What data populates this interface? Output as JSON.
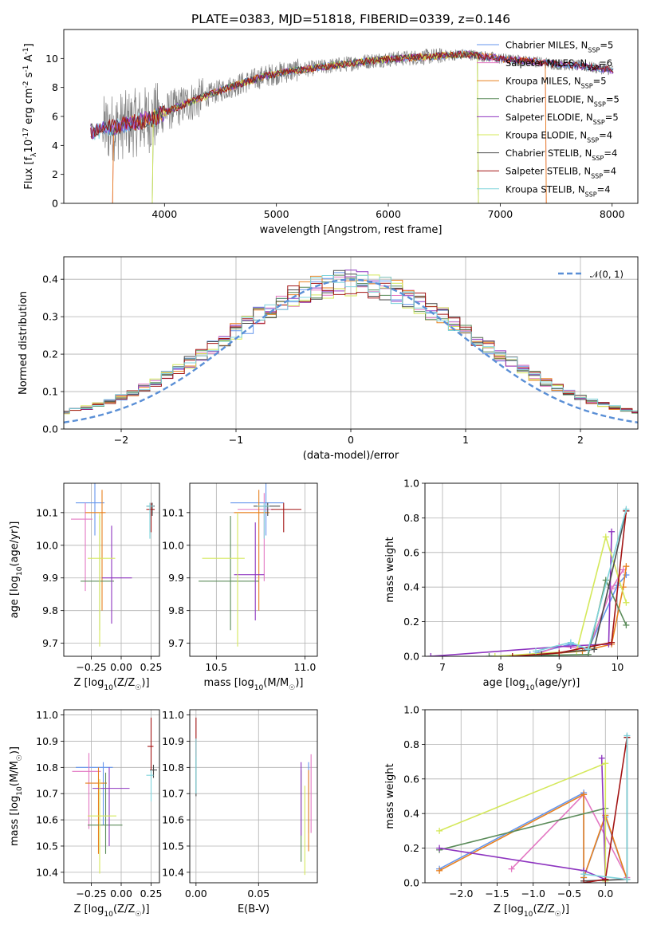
{
  "figure_title": "PLATE=0383, MJD=51818, FIBERID=0339, z=0.146",
  "legend_labels": [
    "Chabrier MILES, N$_{SSP}$=5",
    "Salpeter MILES, N$_{SSP}$=6",
    "Kroupa MILES, N$_{SSP}$=5",
    "Chabrier ELODIE, N$_{SSP}$=5",
    "Salpeter ELODIE, N$_{SSP}$=5",
    "Kroupa ELODIE, N$_{SSP}$=4",
    "Chabrier STELIB, N$_{SSP}$=4",
    "Salpeter STELIB, N$_{SSP}$=4",
    "Kroupa STELIB, N$_{SSP}$=4"
  ],
  "colors": [
    "#6495ed",
    "#e377c2",
    "#e8801e",
    "#5b8c5a",
    "#8e35c0",
    "#d4e85a",
    "#4a4a4a",
    "#a31515",
    "#7fd4dc"
  ],
  "chart_data": [
    {
      "id": "spectrum",
      "type": "line",
      "title": "PLATE=0383, MJD=51818, FIBERID=0339, z=0.146",
      "xlabel": "wavelength [Angstrom, rest frame]",
      "ylabel": "Flux [f$_\\lambda$10$^{-17}$ erg cm$^{-2}$ s$^{-1}$ A$^{-1}$]",
      "xlim": [
        3100,
        8230
      ],
      "ylim": [
        0,
        12
      ],
      "xticks": [
        4000,
        5000,
        6000,
        7000,
        8000
      ],
      "yticks": [
        0,
        2,
        4,
        6,
        8,
        10
      ],
      "grid": false,
      "legend": "upper right",
      "data_wavelength_range": [
        3340,
        8010
      ],
      "model_cutoffs": [
        {
          "series": "Kroupa MILES",
          "start": 3540,
          "end": 7410
        },
        {
          "series": "Salpeter MILES",
          "start": 3540,
          "end": 7410
        },
        {
          "series": "Kroupa ELODIE",
          "start": 3900,
          "end": 6800
        },
        {
          "series": "Chabrier ELODIE",
          "start": 3900,
          "end": 6800
        }
      ],
      "continuum": [
        [
          3340,
          4.9
        ],
        [
          3500,
          5.2
        ],
        [
          3700,
          5.5
        ],
        [
          3900,
          5.9
        ],
        [
          4100,
          6.6
        ],
        [
          4300,
          7.2
        ],
        [
          4500,
          7.8
        ],
        [
          4700,
          8.3
        ],
        [
          4900,
          8.8
        ],
        [
          5100,
          9.1
        ],
        [
          5300,
          9.3
        ],
        [
          5500,
          9.5
        ],
        [
          5700,
          9.7
        ],
        [
          5900,
          9.9
        ],
        [
          6100,
          10.0
        ],
        [
          6300,
          10.1
        ],
        [
          6500,
          10.2
        ],
        [
          6700,
          10.3
        ],
        [
          6900,
          10.1
        ],
        [
          7100,
          9.9
        ],
        [
          7300,
          9.8
        ],
        [
          7500,
          9.6
        ],
        [
          7700,
          9.5
        ],
        [
          8010,
          9.2
        ]
      ],
      "series": [
        {
          "name": "Chabrier MILES, N$_{SSP}$=5"
        },
        {
          "name": "Salpeter MILES, N$_{SSP}$=6"
        },
        {
          "name": "Kroupa MILES, N$_{SSP}$=5"
        },
        {
          "name": "Chabrier ELODIE, N$_{SSP}$=5"
        },
        {
          "name": "Salpeter ELODIE, N$_{SSP}$=5"
        },
        {
          "name": "Kroupa ELODIE, N$_{SSP}$=4"
        },
        {
          "name": "Chabrier STELIB, N$_{SSP}$=4"
        },
        {
          "name": "Salpeter STELIB, N$_{SSP}$=4"
        },
        {
          "name": "Kroupa STELIB, N$_{SSP}$=4"
        }
      ]
    },
    {
      "id": "residuals",
      "type": "line",
      "xlabel": "(data-model)/error",
      "ylabel": "Normed distribution",
      "xlim": [
        -2.5,
        2.5
      ],
      "ylim": [
        0,
        0.46
      ],
      "xticks": [
        -2,
        -1,
        0,
        1,
        2
      ],
      "yticks": [
        0.0,
        0.1,
        0.2,
        0.3,
        0.4
      ],
      "grid": true,
      "legend": "upper right",
      "legend_label": "$\\mathcal{N}(0,1)$",
      "bin_width": 0.1
    },
    {
      "id": "age_vs_Z",
      "type": "scatter",
      "xlabel": "Z [log$_{10}$(Z/Z$_\\odot$)]",
      "ylabel": "age  [log$_{10}$(age/yr)]",
      "xlim": [
        -0.48,
        0.32
      ],
      "ylim": [
        9.66,
        10.19
      ],
      "xticks": [
        -0.25,
        0.0,
        0.25
      ],
      "yticks": [
        9.7,
        9.8,
        9.9,
        10.0,
        10.1
      ],
      "grid": true,
      "points": [
        {
          "x": -0.22,
          "y": 10.13,
          "xerr": [
            0.16,
            0.08
          ],
          "yerr": [
            0.1,
            0.06
          ]
        },
        {
          "x": -0.3,
          "y": 10.08,
          "xerr": [
            0.12,
            0.06
          ],
          "yerr": [
            0.22,
            0.05
          ]
        },
        {
          "x": -0.16,
          "y": 10.1,
          "xerr": [
            0.14,
            0.03
          ],
          "yerr": [
            0.3,
            0.07
          ]
        },
        {
          "x": -0.18,
          "y": 9.89,
          "xerr": [
            0.16,
            0.12
          ],
          "yerr": [
            0.15,
            0.2
          ]
        },
        {
          "x": -0.08,
          "y": 9.9,
          "xerr": [
            0.08,
            0.17
          ],
          "yerr": [
            0.14,
            0.16
          ]
        },
        {
          "x": -0.18,
          "y": 9.96,
          "xerr": [
            0.1,
            0.13
          ],
          "yerr": [
            0.27,
            0.14
          ]
        },
        {
          "x": 0.26,
          "y": 10.12,
          "xerr": [
            0.05,
            0.02
          ],
          "yerr": [
            0.03,
            0.01
          ]
        },
        {
          "x": 0.25,
          "y": 10.11,
          "xerr": [
            0.04,
            0.03
          ],
          "yerr": [
            0.07,
            0.02
          ]
        },
        {
          "x": 0.24,
          "y": 10.12,
          "xerr": [
            0.03,
            0.03
          ],
          "yerr": [
            0.1,
            0.01
          ]
        }
      ]
    },
    {
      "id": "age_vs_mass",
      "type": "scatter",
      "xlabel": "mass [log$_{10}$(M/M$_\\odot$)]",
      "ylabel": "",
      "xlim": [
        10.35,
        11.07
      ],
      "ylim": [
        9.66,
        10.19
      ],
      "xticks": [
        10.5,
        11.0
      ],
      "yticks": [
        9.7,
        9.8,
        9.9,
        10.0,
        10.1
      ],
      "grid": true,
      "points": [
        {
          "x": 10.78,
          "y": 10.13,
          "xerr": [
            0.2,
            0.1
          ],
          "yerr": [
            0.1,
            0.06
          ]
        },
        {
          "x": 10.77,
          "y": 10.11,
          "xerr": [
            0.15,
            0.05
          ],
          "yerr": [
            0.22,
            0.05
          ]
        },
        {
          "x": 10.74,
          "y": 10.1,
          "xerr": [
            0.14,
            0.06
          ],
          "yerr": [
            0.3,
            0.07
          ]
        },
        {
          "x": 10.58,
          "y": 9.89,
          "xerr": [
            0.18,
            0.16
          ],
          "yerr": [
            0.15,
            0.2
          ]
        },
        {
          "x": 10.72,
          "y": 9.91,
          "xerr": [
            0.12,
            0.05
          ],
          "yerr": [
            0.14,
            0.16
          ]
        },
        {
          "x": 10.62,
          "y": 9.96,
          "xerr": [
            0.2,
            0.04
          ],
          "yerr": [
            0.27,
            0.14
          ]
        },
        {
          "x": 10.79,
          "y": 10.12,
          "xerr": [
            0.08,
            0.07
          ],
          "yerr": [
            0.03,
            0.01
          ]
        },
        {
          "x": 10.88,
          "y": 10.11,
          "xerr": [
            0.07,
            0.1
          ],
          "yerr": [
            0.07,
            0.02
          ]
        },
        {
          "x": 10.77,
          "y": 10.12,
          "xerr": [
            0.04,
            0.03
          ],
          "yerr": [
            0.1,
            0.01
          ]
        }
      ]
    },
    {
      "id": "weight_vs_age",
      "type": "line",
      "xlabel": "age  [log$_{10}$(age/yr)]",
      "ylabel": "mass weight",
      "xlim": [
        6.7,
        10.35
      ],
      "ylim": [
        0,
        1.0
      ],
      "xticks": [
        7,
        8,
        9,
        10
      ],
      "yticks": [
        0.0,
        0.2,
        0.4,
        0.6,
        0.8,
        1.0
      ],
      "grid": true,
      "series": [
        {
          "x": [
            8.5,
            9.2,
            9.5,
            10.0,
            10.15
          ],
          "y": [
            0.01,
            0.07,
            0.04,
            0.41,
            0.47
          ]
        },
        {
          "x": [
            8.6,
            9.0,
            9.5,
            9.9,
            10.1
          ],
          "y": [
            0.01,
            0.06,
            0.04,
            0.39,
            0.5
          ]
        },
        {
          "x": [
            8.7,
            9.4,
            9.9,
            10.1,
            10.15
          ],
          "y": [
            0.01,
            0.03,
            0.07,
            0.4,
            0.52
          ]
        },
        {
          "x": [
            7.8,
            9.5,
            9.8,
            10.15
          ],
          "y": [
            0.0,
            0.01,
            0.44,
            0.18
          ]
        },
        {
          "x": [
            6.8,
            9.2,
            9.85,
            9.9
          ],
          "y": [
            0.0,
            0.06,
            0.07,
            0.72
          ]
        },
        {
          "x": [
            7.9,
            9.3,
            9.8,
            10.15
          ],
          "y": [
            0.0,
            0.03,
            0.69,
            0.31
          ]
        },
        {
          "x": [
            8.7,
            9.6,
            10.15
          ],
          "y": [
            0.01,
            0.04,
            0.84
          ]
        },
        {
          "x": [
            8.2,
            9.0,
            9.9,
            10.15
          ],
          "y": [
            0.0,
            0.02,
            0.08,
            0.84
          ]
        },
        {
          "x": [
            8.6,
            9.2,
            9.5,
            10.15
          ],
          "y": [
            0.03,
            0.08,
            0.04,
            0.85
          ]
        }
      ]
    },
    {
      "id": "mass_vs_Z",
      "type": "scatter",
      "xlabel": "Z [log$_{10}$(Z/Z$_\\odot$)]",
      "ylabel": "mass [log$_{10}$(M/M$_\\odot$)]",
      "xlim": [
        -0.48,
        0.32
      ],
      "ylim": [
        10.36,
        11.02
      ],
      "xticks": [
        -0.25,
        0.0,
        0.25
      ],
      "yticks": [
        10.4,
        10.5,
        10.6,
        10.7,
        10.8,
        10.9,
        11.0
      ],
      "grid": true,
      "points": [
        {
          "x": -0.15,
          "y": 10.8,
          "xerr": [
            0.23,
            0.08
          ],
          "yerr": [
            0.22,
            0.02
          ]
        },
        {
          "x": -0.27,
          "y": 10.785,
          "xerr": [
            0.14,
            0.1
          ],
          "yerr": [
            0.22,
            0.07
          ]
        },
        {
          "x": -0.19,
          "y": 10.74,
          "xerr": [
            0.11,
            0.07
          ],
          "yerr": [
            0.27,
            0.06
          ]
        },
        {
          "x": -0.13,
          "y": 10.58,
          "xerr": [
            0.15,
            0.14
          ],
          "yerr": [
            0.11,
            0.2
          ]
        },
        {
          "x": -0.1,
          "y": 10.72,
          "xerr": [
            0.14,
            0.17
          ],
          "yerr": [
            0.22,
            0.08
          ]
        },
        {
          "x": -0.18,
          "y": 10.615,
          "xerr": [
            0.1,
            0.14
          ],
          "yerr": [
            0.22,
            0.14
          ]
        },
        {
          "x": 0.27,
          "y": 10.79,
          "xerr": [
            0.03,
            0.03
          ],
          "yerr": [
            0.03,
            0.02
          ]
        },
        {
          "x": 0.25,
          "y": 10.88,
          "xerr": [
            0.03,
            0.02
          ],
          "yerr": [
            0.1,
            0.11
          ]
        },
        {
          "x": 0.25,
          "y": 10.77,
          "xerr": [
            0.04,
            0.02
          ],
          "yerr": [
            0.1,
            0.02
          ]
        }
      ]
    },
    {
      "id": "mass_vs_EBV",
      "type": "scatter",
      "xlabel": "E(B-V)",
      "ylabel": "",
      "xlim": [
        -0.005,
        0.097
      ],
      "ylim": [
        10.36,
        11.02
      ],
      "xticks": [
        0.0,
        0.05
      ],
      "yticks": [
        10.4,
        10.5,
        10.6,
        10.7,
        10.8,
        10.9,
        11.0
      ],
      "grid": true,
      "points": [
        {
          "x": 0.09,
          "y": 10.8,
          "xerr": [
            0,
            0
          ],
          "yerr": [
            0.25,
            0.02
          ]
        },
        {
          "x": 0.092,
          "y": 10.79,
          "xerr": [
            0,
            0
          ],
          "yerr": [
            0.24,
            0.06
          ]
        },
        {
          "x": 0.09,
          "y": 10.74,
          "xerr": [
            0,
            0
          ],
          "yerr": [
            0.26,
            0.05
          ]
        },
        {
          "x": 0.084,
          "y": 10.58,
          "xerr": [
            0,
            0
          ],
          "yerr": [
            0.14,
            0.21
          ]
        },
        {
          "x": 0.084,
          "y": 10.72,
          "xerr": [
            0,
            0
          ],
          "yerr": [
            0.18,
            0.1
          ]
        },
        {
          "x": 0.087,
          "y": 10.61,
          "xerr": [
            0,
            0
          ],
          "yerr": [
            0.22,
            0.12
          ]
        },
        {
          "x": 0.0,
          "y": 10.79,
          "xerr": [
            0,
            0
          ],
          "yerr": [
            0.1,
            0.05
          ]
        },
        {
          "x": 0.0,
          "y": 10.9,
          "xerr": [
            0,
            0
          ],
          "yerr": [
            0.06,
            0.09
          ]
        },
        {
          "x": 0.0,
          "y": 10.8,
          "xerr": [
            0,
            0
          ],
          "yerr": [
            0.1,
            0.11
          ]
        }
      ]
    },
    {
      "id": "weight_vs_Z",
      "type": "line",
      "xlabel": "Z [log$_{10}$(Z/Z$_\\odot$)]",
      "ylabel": "mass weight",
      "xlim": [
        -2.5,
        0.45
      ],
      "ylim": [
        0,
        1.0
      ],
      "xticks": [
        -2.0,
        -1.5,
        -1.0,
        -0.5,
        0.0
      ],
      "yticks": [
        0.0,
        0.2,
        0.4,
        0.6,
        0.8,
        1.0
      ],
      "grid": true,
      "series": [
        {
          "x": [
            -2.3,
            -0.3,
            -0.3,
            0.0,
            0.3
          ],
          "y": [
            0.08,
            0.52,
            0.03,
            0.38,
            0.02
          ]
        },
        {
          "x": [
            -1.3,
            -0.3,
            0.3
          ],
          "y": [
            0.08,
            0.51,
            0.03
          ]
        },
        {
          "x": [
            -2.3,
            -0.3,
            -0.3,
            0.0,
            0.3
          ],
          "y": [
            0.07,
            0.51,
            0.03,
            0.39,
            0.02
          ]
        },
        {
          "x": [
            -2.3,
            0.0
          ],
          "y": [
            0.19,
            0.43
          ]
        },
        {
          "x": [
            -2.3,
            -0.3,
            0.0,
            -0.05
          ],
          "y": [
            0.2,
            0.07,
            0.02,
            0.72
          ]
        },
        {
          "x": [
            -2.3,
            0.0,
            0.0
          ],
          "y": [
            0.3,
            0.69,
            0.01
          ]
        },
        {
          "x": [
            -0.3,
            0.3,
            0.3
          ],
          "y": [
            0.01,
            0.02,
            0.84
          ]
        },
        {
          "x": [
            -0.3,
            0.0,
            0.3
          ],
          "y": [
            0.0,
            0.02,
            0.84
          ]
        },
        {
          "x": [
            -0.3,
            0.3,
            0.3
          ],
          "y": [
            0.05,
            0.02,
            0.85
          ]
        }
      ]
    }
  ]
}
